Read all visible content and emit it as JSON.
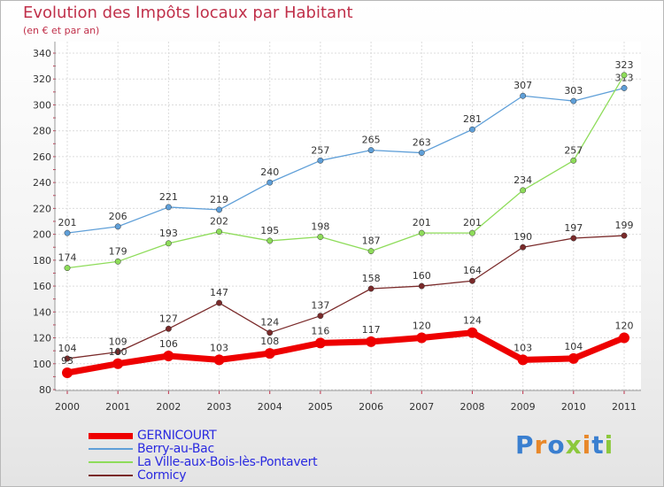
{
  "title": "Evolution des Impôts locaux par Habitant",
  "subtitle": "(en € et par an)",
  "brand": {
    "text": "Proxiti",
    "letters": [
      {
        "ch": "P",
        "color": "#3a7fd0"
      },
      {
        "ch": "r",
        "color": "#e8882a"
      },
      {
        "ch": "o",
        "color": "#3a7fd0"
      },
      {
        "ch": "x",
        "color": "#8cc83c"
      },
      {
        "ch": "i",
        "color": "#e8882a"
      },
      {
        "ch": "t",
        "color": "#3a7fd0"
      },
      {
        "ch": "i",
        "color": "#8cc83c"
      }
    ]
  },
  "chart_data": {
    "type": "line",
    "title": "Evolution des Impôts locaux par Habitant",
    "subtitle": "(en € et par an)",
    "x": [
      "2000",
      "2001",
      "2002",
      "2003",
      "2004",
      "2005",
      "2006",
      "2007",
      "2008",
      "2009",
      "2010",
      "2011"
    ],
    "ylim": [
      80,
      340
    ],
    "yticks": [
      80,
      100,
      120,
      140,
      160,
      180,
      200,
      220,
      240,
      260,
      280,
      300,
      320,
      340
    ],
    "grid": true,
    "legend_position": "bottom-left",
    "series": [
      {
        "name": "GERNICOURT",
        "color": "#ee0000",
        "values": [
          93,
          100,
          106,
          103,
          108,
          116,
          117,
          120,
          124,
          103,
          104,
          120
        ]
      },
      {
        "name": "Berry-au-Bac",
        "color": "#5f9fd8",
        "values": [
          201,
          206,
          221,
          219,
          240,
          257,
          265,
          263,
          281,
          307,
          303,
          313
        ]
      },
      {
        "name": "La Ville-aux-Bois-lès-Pontavert",
        "color": "#8edc5a",
        "values": [
          174,
          179,
          193,
          202,
          195,
          198,
          187,
          201,
          201,
          234,
          257,
          323
        ]
      },
      {
        "name": "Cormicy",
        "color": "#7a2a2a",
        "values": [
          104,
          109,
          127,
          147,
          124,
          137,
          158,
          160,
          164,
          190,
          197,
          199
        ]
      }
    ]
  }
}
